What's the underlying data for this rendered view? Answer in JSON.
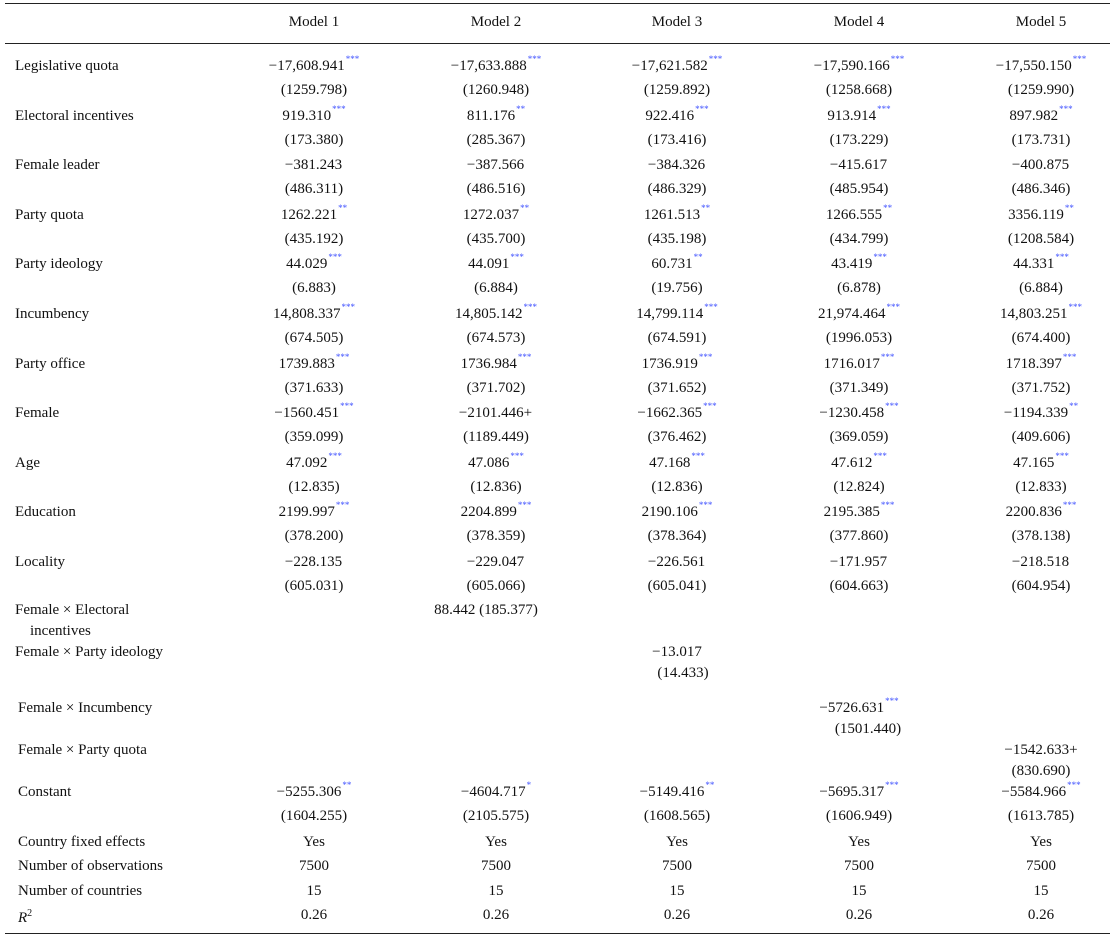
{
  "table": {
    "columns": [
      "Model 1",
      "Model 2",
      "Model 3",
      "Model 4",
      "Model 5"
    ],
    "rows": [
      {
        "label": "Legislative quota",
        "coef": [
          [
            "−17,608.941",
            "***"
          ],
          [
            "−17,633.888",
            "***"
          ],
          [
            "−17,621.582",
            "***"
          ],
          [
            "−17,590.166",
            "***"
          ],
          [
            "−17,550.150",
            "***"
          ]
        ],
        "se": [
          "(1259.798)",
          "(1260.948)",
          "(1259.892)",
          "(1258.668)",
          "(1259.990)"
        ]
      },
      {
        "label": "Electoral incentives",
        "coef": [
          [
            "919.310",
            "***"
          ],
          [
            "811.176",
            "**"
          ],
          [
            "922.416",
            "***"
          ],
          [
            "913.914",
            "***"
          ],
          [
            "897.982",
            "***"
          ]
        ],
        "se": [
          "(173.380)",
          "(285.367)",
          "(173.416)",
          "(173.229)",
          "(173.731)"
        ]
      },
      {
        "label": "Female leader",
        "coef": [
          [
            "−381.243",
            ""
          ],
          [
            "−387.566",
            ""
          ],
          [
            "−384.326",
            ""
          ],
          [
            "−415.617",
            ""
          ],
          [
            "−400.875",
            ""
          ]
        ],
        "se": [
          "(486.311)",
          "(486.516)",
          "(486.329)",
          "(485.954)",
          "(486.346)"
        ]
      },
      {
        "label": "Party quota",
        "coef": [
          [
            "1262.221",
            "**"
          ],
          [
            "1272.037",
            "**"
          ],
          [
            "1261.513",
            "**"
          ],
          [
            "1266.555",
            "**"
          ],
          [
            "3356.119",
            "**"
          ]
        ],
        "se": [
          "(435.192)",
          "(435.700)",
          "(435.198)",
          "(434.799)",
          "(1208.584)"
        ]
      },
      {
        "label": "Party ideology",
        "coef": [
          [
            "44.029",
            "***"
          ],
          [
            "44.091",
            "***"
          ],
          [
            "60.731",
            "**"
          ],
          [
            "43.419",
            "***"
          ],
          [
            "44.331",
            "***"
          ]
        ],
        "se": [
          "(6.883)",
          "(6.884)",
          "(19.756)",
          "(6.878)",
          "(6.884)"
        ]
      },
      {
        "label": "Incumbency",
        "coef": [
          [
            "14,808.337",
            "***"
          ],
          [
            "14,805.142",
            "***"
          ],
          [
            "14,799.114",
            "***"
          ],
          [
            "21,974.464",
            "***"
          ],
          [
            "14,803.251",
            "***"
          ]
        ],
        "se": [
          "(674.505)",
          "(674.573)",
          "(674.591)",
          "(1996.053)",
          "(674.400)"
        ]
      },
      {
        "label": "Party office",
        "coef": [
          [
            "1739.883",
            "***"
          ],
          [
            "1736.984",
            "***"
          ],
          [
            "1736.919",
            "***"
          ],
          [
            "1716.017",
            "***"
          ],
          [
            "1718.397",
            "***"
          ]
        ],
        "se": [
          "(371.633)",
          "(371.702)",
          "(371.652)",
          "(371.349)",
          "(371.752)"
        ]
      },
      {
        "label": "Female",
        "coef": [
          [
            "−1560.451",
            "***"
          ],
          [
            "−2101.446+",
            ""
          ],
          [
            "−1662.365",
            "***"
          ],
          [
            "−1230.458",
            "***"
          ],
          [
            "−1194.339",
            "**"
          ]
        ],
        "se": [
          "(359.099)",
          "(1189.449)",
          "(376.462)",
          "(369.059)",
          "(409.606)"
        ]
      },
      {
        "label": "Age",
        "coef": [
          [
            "47.092",
            "***"
          ],
          [
            "47.086",
            "***"
          ],
          [
            "47.168",
            "***"
          ],
          [
            "47.612",
            "***"
          ],
          [
            "47.165",
            "***"
          ]
        ],
        "se": [
          "(12.835)",
          "(12.836)",
          "(12.836)",
          "(12.824)",
          "(12.833)"
        ]
      },
      {
        "label": "Education",
        "coef": [
          [
            "2199.997",
            "***"
          ],
          [
            "2204.899",
            "***"
          ],
          [
            "2190.106",
            "***"
          ],
          [
            "2195.385",
            "***"
          ],
          [
            "2200.836",
            "***"
          ]
        ],
        "se": [
          "(378.200)",
          "(378.359)",
          "(378.364)",
          "(377.860)",
          "(378.138)"
        ]
      },
      {
        "label": "Locality",
        "coef": [
          [
            "−228.135",
            ""
          ],
          [
            "−229.047",
            ""
          ],
          [
            "−226.561",
            ""
          ],
          [
            "−171.957",
            ""
          ],
          [
            "−218.518",
            ""
          ]
        ],
        "se": [
          "(605.031)",
          "(605.066)",
          "(605.041)",
          "(604.663)",
          "(604.954)"
        ]
      }
    ],
    "interactions": {
      "elec_label_1": "Female × Electoral",
      "elec_label_2": "incentives",
      "elec_value": "88.442 (185.377)",
      "ideo_label": "Female × Party ideology",
      "ideo_coef": "−13.017",
      "ideo_se": "(14.433)",
      "inc_label": "Female × Incumbency",
      "inc_coef": "−5726.631",
      "inc_stars": "***",
      "inc_se": "(1501.440)",
      "pq_label": "Female × Party quota",
      "pq_coef": "−1542.633+",
      "pq_se": "(830.690)"
    },
    "constant": {
      "label": "Constant",
      "coef": [
        [
          "−5255.306",
          "**"
        ],
        [
          "−4604.717",
          "*"
        ],
        [
          "−5149.416",
          "**"
        ],
        [
          "−5695.317",
          "***"
        ],
        [
          "−5584.966",
          "***"
        ]
      ],
      "se": [
        "(1604.255)",
        "(2105.575)",
        "(1608.565)",
        "(1606.949)",
        "(1613.785)"
      ]
    },
    "footer": [
      {
        "label": "Country fixed effects",
        "values": [
          "Yes",
          "Yes",
          "Yes",
          "Yes",
          "Yes"
        ]
      },
      {
        "label": "Number of observations",
        "values": [
          "7500",
          "7500",
          "7500",
          "7500",
          "7500"
        ]
      },
      {
        "label": "Number of countries",
        "values": [
          "15",
          "15",
          "15",
          "15",
          "15"
        ]
      }
    ],
    "r2": {
      "label_base": "R",
      "label_sup": "2",
      "values": [
        "0.26",
        "0.26",
        "0.26",
        "0.26",
        "0.26"
      ]
    },
    "colors": {
      "text": "#111111",
      "stars": "#3f51ff",
      "rules": "#222222"
    }
  }
}
